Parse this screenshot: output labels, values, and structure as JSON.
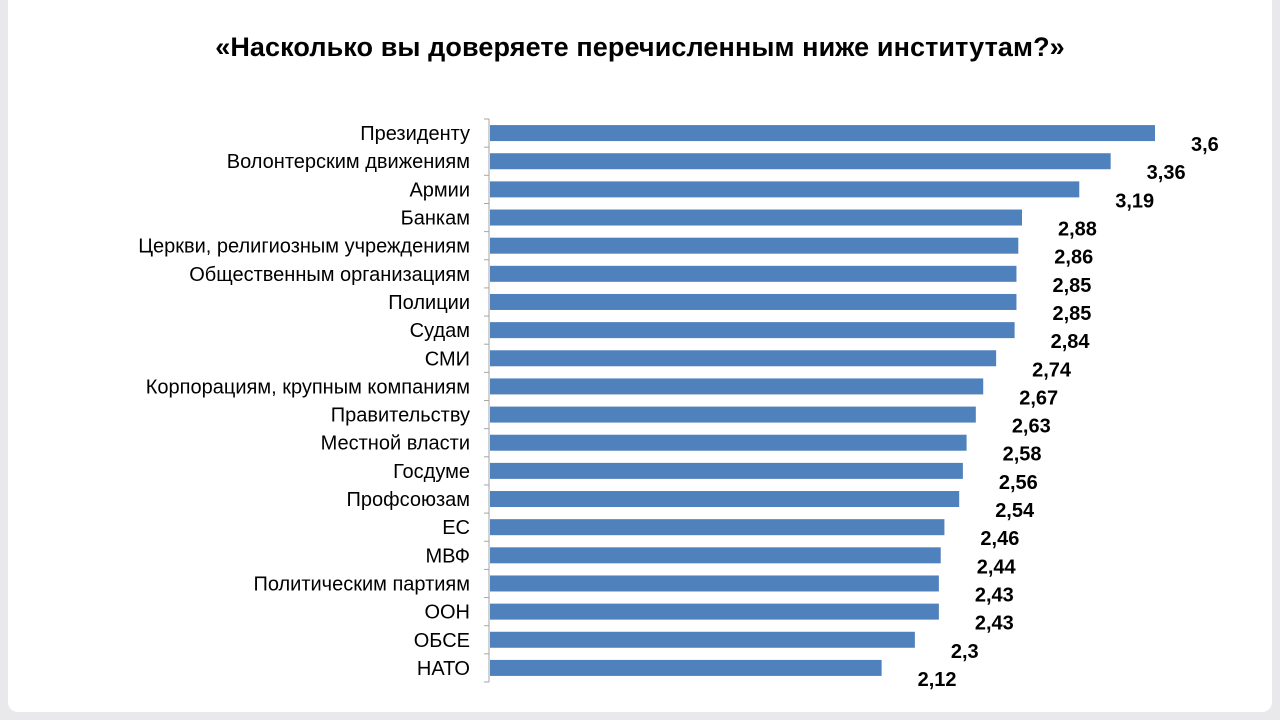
{
  "chart_data": {
    "type": "bar",
    "orientation": "horizontal",
    "title": "«Насколько вы доверяете перечисленным ниже институтам?»",
    "categories": [
      "Президенту",
      "Волонтерским движениям",
      "Армии",
      "Банкам",
      "Церкви, религиозным учреждениям",
      "Общественным организациям",
      "Полиции",
      "Судам",
      "СМИ",
      "Корпорациям, крупным компаниям",
      "Правительству",
      "Местной власти",
      "Госдуме",
      "Профсоюзам",
      "ЕС",
      "МВФ",
      "Политическим партиям",
      "ООН",
      "ОБСЕ",
      "НАТО"
    ],
    "values": [
      3.6,
      3.36,
      3.19,
      2.88,
      2.86,
      2.85,
      2.85,
      2.84,
      2.74,
      2.67,
      2.63,
      2.58,
      2.56,
      2.54,
      2.46,
      2.44,
      2.43,
      2.43,
      2.3,
      2.12
    ],
    "value_labels": [
      "3,6",
      "3,36",
      "3,19",
      "2,88",
      "2,86",
      "2,85",
      "2,85",
      "2,84",
      "2,74",
      "2,67",
      "2,63",
      "2,58",
      "2,56",
      "2,54",
      "2,46",
      "2,44",
      "2,43",
      "2,43",
      "2,3",
      "2,12"
    ],
    "xlim": [
      0,
      3.6
    ],
    "grid": false,
    "legend": "none",
    "bar_color": "#4f81bd",
    "axis_color": "#a6a6a6"
  }
}
